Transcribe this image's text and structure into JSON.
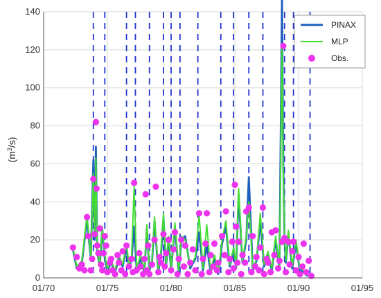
{
  "chart_data": {
    "type": "line",
    "ylabel_pre": "(m",
    "ylabel_sup": "3",
    "ylabel_post": "/s)",
    "ylim": [
      0,
      140
    ],
    "xlim": [
      1970,
      1995
    ],
    "y_ticks": [
      0,
      20,
      40,
      60,
      80,
      100,
      120,
      140
    ],
    "y_tick_labels": [
      "0",
      "20",
      "40",
      "60",
      "80",
      "100",
      "120",
      "140"
    ],
    "x_ticks": [
      1970,
      1975,
      1980,
      1985,
      1990,
      1995
    ],
    "x_tick_labels": [
      "01/70",
      "01/75",
      "01/80",
      "01/85",
      "01/90",
      "01/95"
    ],
    "grid": true,
    "legend_position": "top-right",
    "vertical_dashed_lines": [
      1973.9,
      1974.8,
      1976.5,
      1977.2,
      1978.3,
      1979.4,
      1980.0,
      1980.7,
      1982.1,
      1983.9,
      1984.9,
      1986.1,
      1987.2,
      1988.9,
      1989.6,
      1990.9
    ],
    "series": [
      {
        "name": "PINAX",
        "color": "#1f5fbf",
        "style": "line",
        "x": [
          1972.3,
          1972.6,
          1973.0,
          1973.4,
          1973.7,
          1973.9,
          1974.0,
          1974.1,
          1974.2,
          1974.4,
          1974.6,
          1974.8,
          1975.0,
          1975.3,
          1975.6,
          1975.9,
          1976.2,
          1976.5,
          1976.7,
          1976.9,
          1977.1,
          1977.3,
          1977.6,
          1977.9,
          1978.1,
          1978.3,
          1978.5,
          1978.7,
          1979.0,
          1979.2,
          1979.4,
          1979.6,
          1979.8,
          1980.0,
          1980.3,
          1980.6,
          1980.8,
          1981.1,
          1981.5,
          1981.9,
          1982.2,
          1982.5,
          1982.8,
          1983.1,
          1983.4,
          1983.7,
          1984.0,
          1984.3,
          1984.6,
          1984.9,
          1985.1,
          1985.3,
          1985.6,
          1985.9,
          1986.1,
          1986.4,
          1986.7,
          1987.0,
          1987.3,
          1987.6,
          1987.9,
          1988.2,
          1988.5,
          1988.7,
          1988.8,
          1988.9,
          1989.0,
          1989.2,
          1989.5,
          1989.8,
          1990.1,
          1990.4,
          1990.7
        ],
        "y": [
          15,
          5,
          8,
          31,
          10,
          62,
          20,
          69,
          14,
          6,
          26,
          10,
          4,
          8,
          3,
          10,
          6,
          16,
          5,
          10,
          27,
          4,
          10,
          3,
          26,
          4,
          8,
          30,
          3,
          12,
          32,
          6,
          20,
          4,
          27,
          3,
          20,
          22,
          5,
          10,
          24,
          4,
          17,
          3,
          10,
          2,
          18,
          27,
          6,
          14,
          5,
          44,
          8,
          20,
          53,
          4,
          9,
          30,
          6,
          12,
          4,
          20,
          5,
          148,
          60,
          20,
          8,
          23,
          5,
          18,
          4,
          3,
          1
        ],
        "width": 2.8
      },
      {
        "name": "MLP",
        "color": "#44dd33",
        "style": "line",
        "x": [
          1972.3,
          1972.6,
          1973.0,
          1973.4,
          1973.7,
          1973.9,
          1974.0,
          1974.1,
          1974.2,
          1974.4,
          1974.6,
          1974.8,
          1975.0,
          1975.3,
          1975.6,
          1975.9,
          1976.2,
          1976.5,
          1976.7,
          1976.9,
          1977.1,
          1977.3,
          1977.6,
          1977.9,
          1978.1,
          1978.3,
          1978.5,
          1978.7,
          1979.0,
          1979.2,
          1979.4,
          1979.6,
          1979.8,
          1980.0,
          1980.3,
          1980.6,
          1980.8,
          1981.1,
          1981.5,
          1981.9,
          1982.2,
          1982.5,
          1982.8,
          1983.1,
          1983.4,
          1983.7,
          1984.0,
          1984.3,
          1984.6,
          1984.9,
          1985.1,
          1985.3,
          1985.6,
          1985.9,
          1986.1,
          1986.4,
          1986.7,
          1987.0,
          1987.3,
          1987.6,
          1987.9,
          1988.2,
          1988.5,
          1988.7,
          1988.8,
          1988.9,
          1989.0,
          1989.2,
          1989.5,
          1989.8,
          1990.1,
          1990.4,
          1990.7
        ],
        "y": [
          16,
          6,
          9,
          33,
          11,
          55,
          22,
          63,
          15,
          7,
          27,
          12,
          5,
          9,
          4,
          12,
          7,
          18,
          6,
          12,
          48,
          5,
          12,
          4,
          28,
          5,
          9,
          32,
          4,
          14,
          34,
          7,
          22,
          5,
          29,
          4,
          22,
          20,
          6,
          11,
          33,
          5,
          28,
          4,
          12,
          3,
          20,
          30,
          7,
          16,
          6,
          47,
          9,
          22,
          40,
          5,
          10,
          34,
          7,
          14,
          5,
          22,
          6,
          122,
          55,
          22,
          9,
          25,
          6,
          20,
          5,
          4,
          2
        ],
        "width": 2
      },
      {
        "name": "Obs.",
        "color": "#ee33ee",
        "style": "marker",
        "x": [
          1972.3,
          1972.6,
          1972.8,
          1973.0,
          1973.2,
          1973.4,
          1973.5,
          1973.7,
          1973.8,
          1973.9,
          1974.0,
          1974.1,
          1974.15,
          1974.2,
          1974.3,
          1974.4,
          1974.5,
          1974.6,
          1974.7,
          1974.8,
          1974.9,
          1975.0,
          1975.2,
          1975.3,
          1975.4,
          1975.6,
          1975.8,
          1975.9,
          1976.1,
          1976.2,
          1976.4,
          1976.5,
          1976.7,
          1976.9,
          1977.0,
          1977.1,
          1977.3,
          1977.5,
          1977.6,
          1977.8,
          1977.9,
          1978.0,
          1978.1,
          1978.2,
          1978.3,
          1978.5,
          1978.7,
          1978.8,
          1979.0,
          1979.1,
          1979.2,
          1979.4,
          1979.5,
          1979.6,
          1979.8,
          1980.0,
          1980.2,
          1980.3,
          1980.5,
          1980.6,
          1980.8,
          1981.0,
          1981.1,
          1981.3,
          1981.5,
          1981.7,
          1981.9,
          1982.2,
          1982.4,
          1982.5,
          1982.7,
          1982.8,
          1983.0,
          1983.1,
          1983.3,
          1983.4,
          1983.6,
          1983.7,
          1984.0,
          1984.2,
          1984.3,
          1984.5,
          1984.6,
          1984.8,
          1984.9,
          1985.0,
          1985.1,
          1985.2,
          1985.3,
          1985.5,
          1985.6,
          1985.8,
          1985.9,
          1986.1,
          1986.3,
          1986.4,
          1986.6,
          1986.7,
          1986.9,
          1987.0,
          1987.2,
          1987.3,
          1987.5,
          1987.6,
          1987.8,
          1987.9,
          1988.1,
          1988.2,
          1988.4,
          1988.5,
          1988.7,
          1988.8,
          1988.9,
          1989.0,
          1989.2,
          1989.3,
          1989.5,
          1989.6,
          1989.8,
          1990.0,
          1990.1,
          1990.3,
          1990.4,
          1990.6,
          1990.8,
          1991.0
        ],
        "y": [
          16,
          11,
          5,
          7,
          4,
          32,
          22,
          4,
          10,
          52,
          23,
          82,
          47,
          17,
          13,
          26,
          7,
          4,
          13,
          22,
          17,
          3,
          8,
          10,
          4,
          2,
          12,
          8,
          4,
          14,
          2,
          17,
          6,
          10,
          3,
          50,
          4,
          13,
          6,
          2,
          10,
          44,
          4,
          17,
          2,
          7,
          20,
          48,
          3,
          11,
          8,
          23,
          6,
          13,
          20,
          4,
          15,
          24,
          2,
          10,
          20,
          6,
          17,
          2,
          8,
          15,
          4,
          34,
          2,
          10,
          18,
          34,
          3,
          12,
          6,
          18,
          4,
          8,
          22,
          12,
          35,
          3,
          10,
          19,
          5,
          49,
          27,
          8,
          19,
          2,
          12,
          8,
          35,
          37,
          3,
          22,
          6,
          11,
          4,
          16,
          37,
          2,
          10,
          8,
          3,
          24,
          12,
          25,
          5,
          9,
          19,
          122,
          21,
          3,
          19,
          7,
          14,
          19,
          4,
          11,
          2,
          6,
          18,
          3,
          9,
          1
        ],
        "radius": 4.6
      }
    ]
  }
}
